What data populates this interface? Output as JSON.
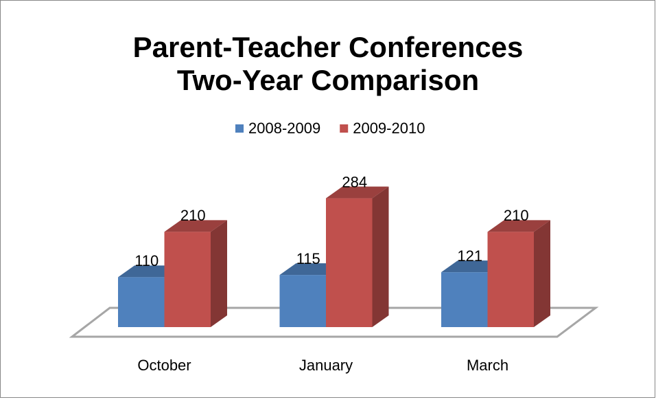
{
  "chart_data": {
    "type": "bar3d",
    "title": [
      "Parent-Teacher Conferences",
      "Two-Year Comparison"
    ],
    "categories": [
      "October",
      "January",
      "March"
    ],
    "series": [
      {
        "name": "2008-2009",
        "color": "#4f81bd",
        "values": [
          110,
          115,
          121
        ]
      },
      {
        "name": "2009-2010",
        "color": "#c0504d",
        "values": [
          210,
          284,
          210
        ]
      }
    ],
    "legend": "top",
    "data_labels": true
  }
}
